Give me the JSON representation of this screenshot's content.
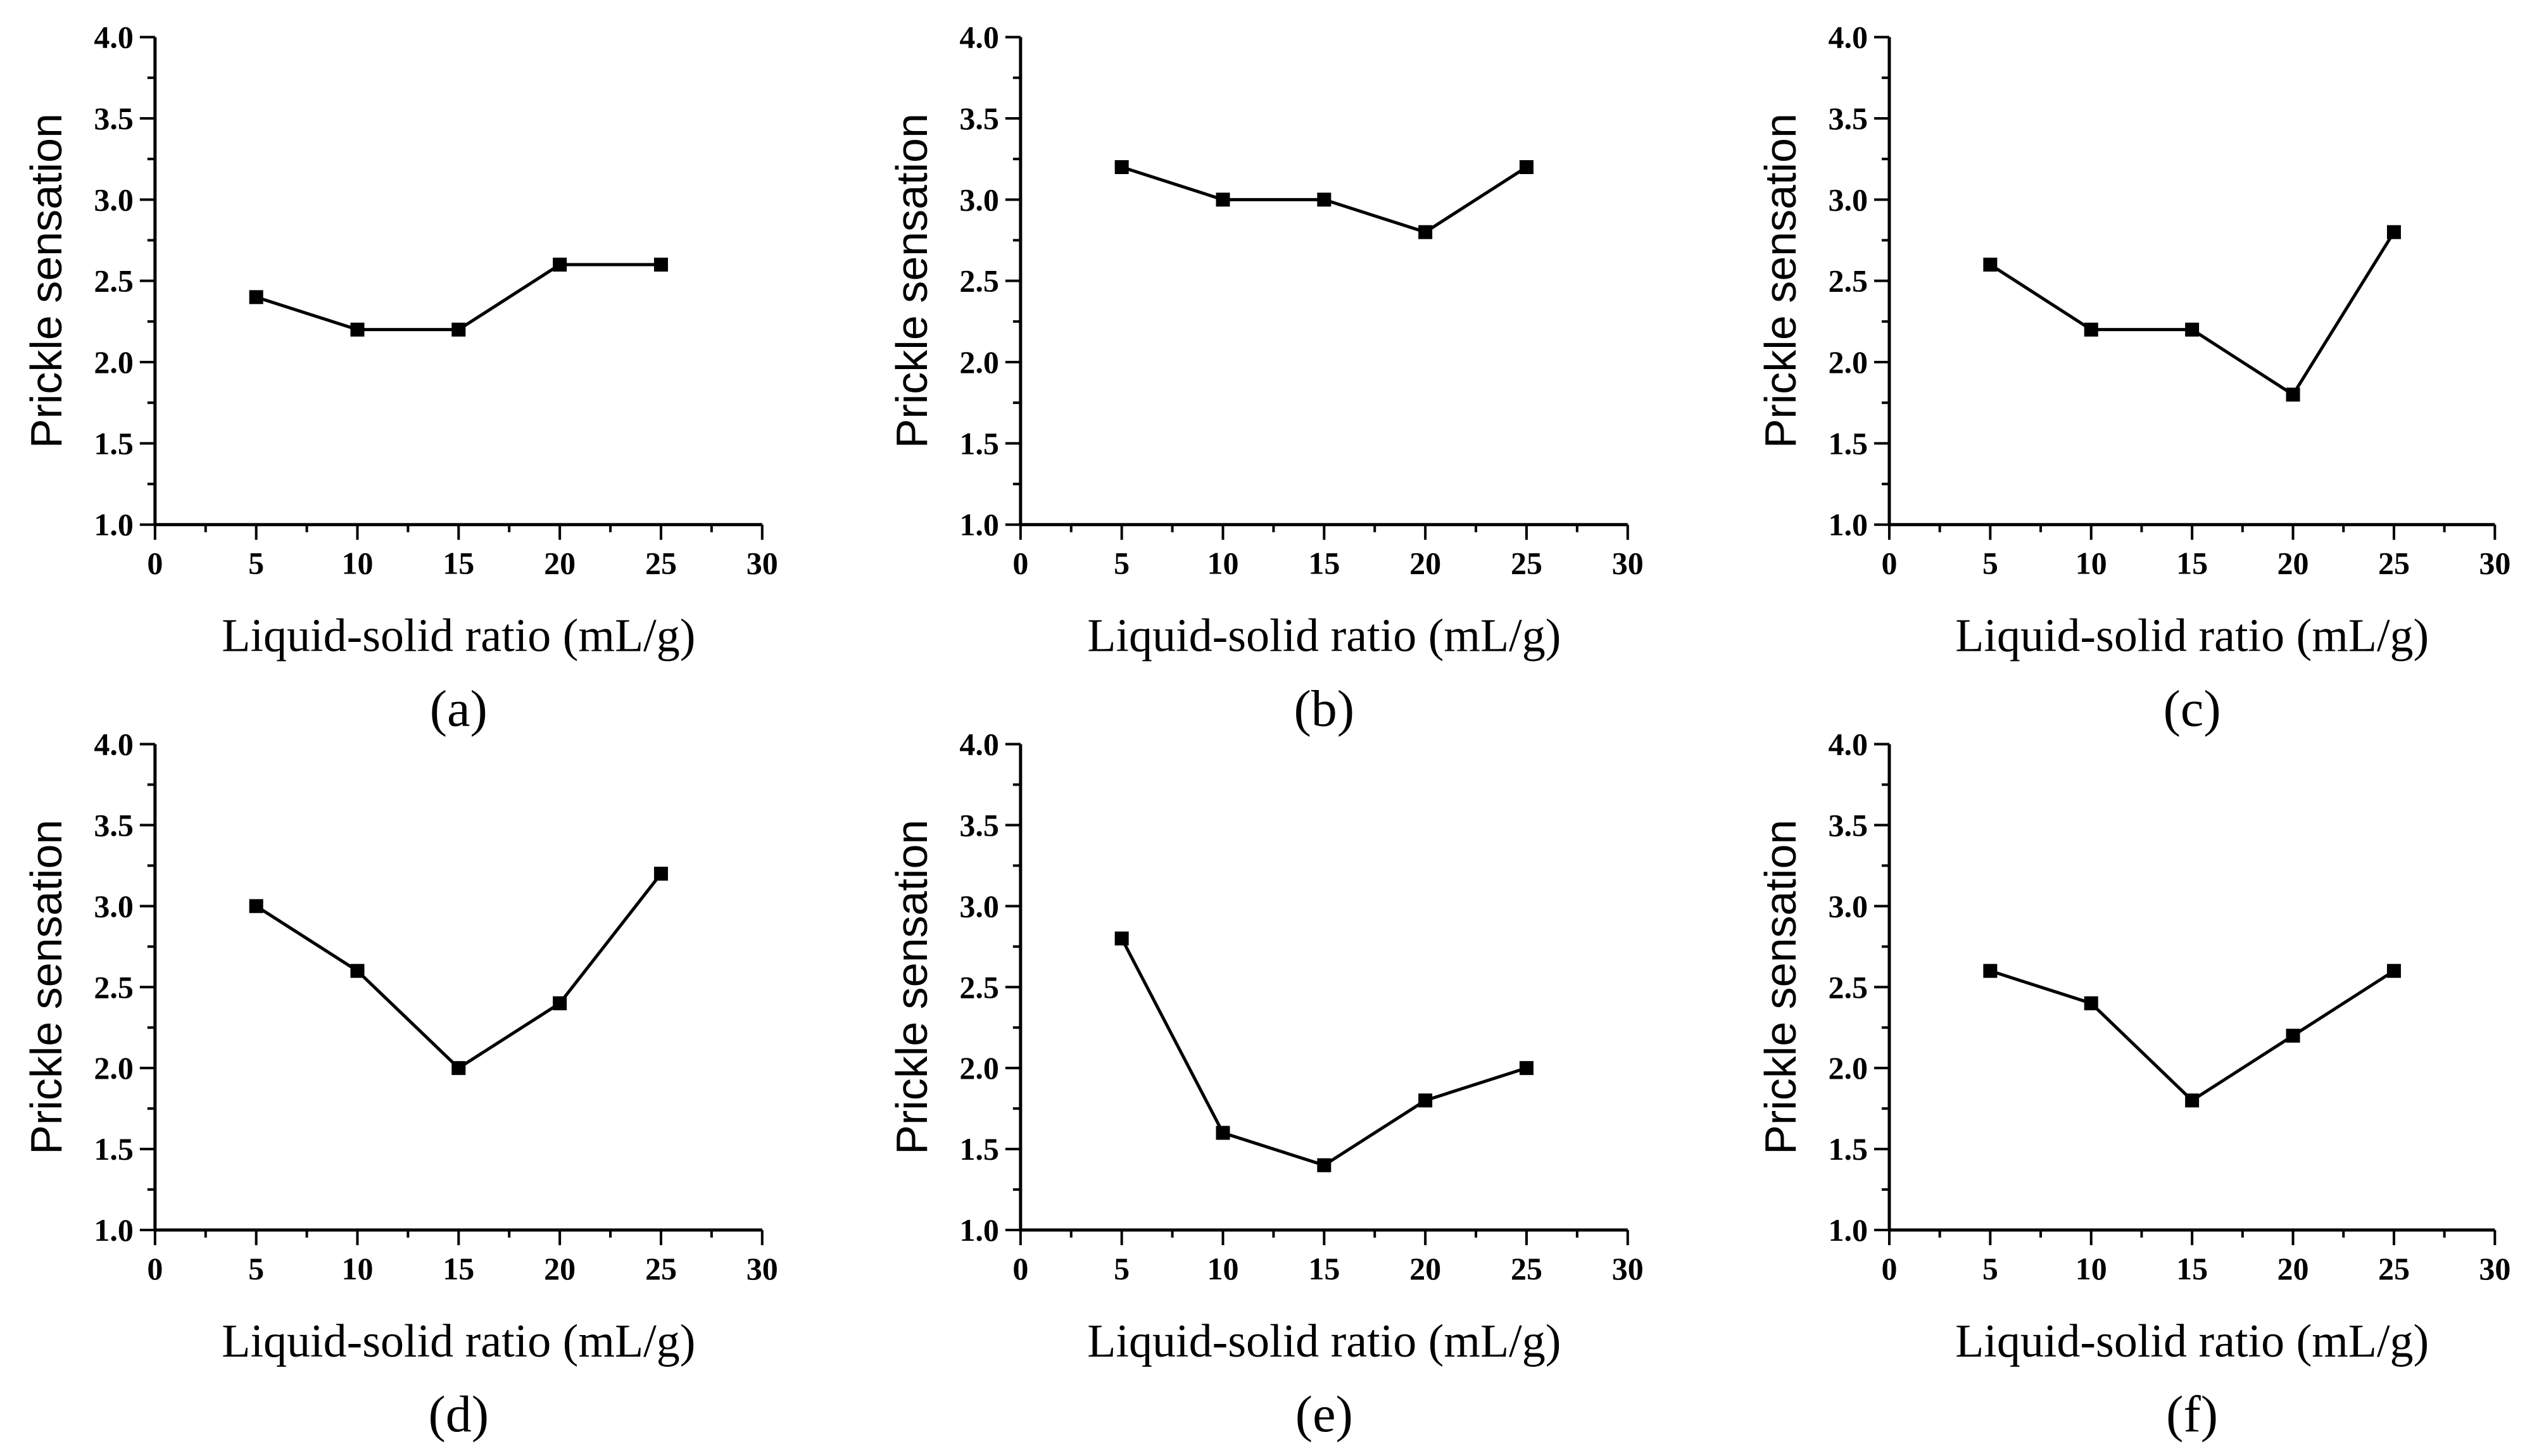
{
  "chart_data": [
    {
      "panel_label": "(a)",
      "type": "line",
      "xlabel": "Liquid-solid ratio (mL/g)",
      "ylabel": "Prickle sensation",
      "xlim": [
        0,
        30
      ],
      "ylim": [
        1.0,
        4.0
      ],
      "xticks": [
        "0",
        "5",
        "10",
        "15",
        "20",
        "25",
        "30"
      ],
      "yticks": [
        "1.0",
        "1.5",
        "2.0",
        "2.5",
        "3.0",
        "3.5",
        "4.0"
      ],
      "x": [
        5,
        10,
        15,
        20,
        25
      ],
      "values": [
        2.4,
        2.2,
        2.2,
        2.6,
        2.6
      ]
    },
    {
      "panel_label": "(b)",
      "type": "line",
      "xlabel": "Liquid-solid ratio (mL/g)",
      "ylabel": "Prickle sensation",
      "xlim": [
        0,
        30
      ],
      "ylim": [
        1.0,
        4.0
      ],
      "xticks": [
        "0",
        "5",
        "10",
        "15",
        "20",
        "25",
        "30"
      ],
      "yticks": [
        "1.0",
        "1.5",
        "2.0",
        "2.5",
        "3.0",
        "3.5",
        "4.0"
      ],
      "x": [
        5,
        10,
        15,
        20,
        25
      ],
      "values": [
        3.2,
        3.0,
        3.0,
        2.8,
        3.2
      ]
    },
    {
      "panel_label": "(c)",
      "type": "line",
      "xlabel": "Liquid-solid ratio (mL/g)",
      "ylabel": "Prickle sensation",
      "xlim": [
        0,
        30
      ],
      "ylim": [
        1.0,
        4.0
      ],
      "xticks": [
        "0",
        "5",
        "10",
        "15",
        "20",
        "25",
        "30"
      ],
      "yticks": [
        "1.0",
        "1.5",
        "2.0",
        "2.5",
        "3.0",
        "3.5",
        "4.0"
      ],
      "x": [
        5,
        10,
        15,
        20,
        25
      ],
      "values": [
        2.6,
        2.2,
        2.2,
        1.8,
        2.8
      ]
    },
    {
      "panel_label": "(d)",
      "type": "line",
      "xlabel": "Liquid-solid ratio (mL/g)",
      "ylabel": "Prickle sensation",
      "xlim": [
        0,
        30
      ],
      "ylim": [
        1.0,
        4.0
      ],
      "xticks": [
        "0",
        "5",
        "10",
        "15",
        "20",
        "25",
        "30"
      ],
      "yticks": [
        "1.0",
        "1.5",
        "2.0",
        "2.5",
        "3.0",
        "3.5",
        "4.0"
      ],
      "x": [
        5,
        10,
        15,
        20,
        25
      ],
      "values": [
        3.0,
        2.6,
        2.0,
        2.4,
        3.2
      ]
    },
    {
      "panel_label": "(e)",
      "type": "line",
      "xlabel": "Liquid-solid ratio (mL/g)",
      "ylabel": "Prickle sensation",
      "xlim": [
        0,
        30
      ],
      "ylim": [
        1.0,
        4.0
      ],
      "xticks": [
        "0",
        "5",
        "10",
        "15",
        "20",
        "25",
        "30"
      ],
      "yticks": [
        "1.0",
        "1.5",
        "2.0",
        "2.5",
        "3.0",
        "3.5",
        "4.0"
      ],
      "x": [
        5,
        10,
        15,
        20,
        25
      ],
      "values": [
        2.8,
        1.6,
        1.4,
        1.8,
        2.0
      ]
    },
    {
      "panel_label": "(f)",
      "type": "line",
      "xlabel": "Liquid-solid ratio (mL/g)",
      "ylabel": "Prickle sensation",
      "xlim": [
        0,
        30
      ],
      "ylim": [
        1.0,
        4.0
      ],
      "xticks": [
        "0",
        "5",
        "10",
        "15",
        "20",
        "25",
        "30"
      ],
      "yticks": [
        "1.0",
        "1.5",
        "2.0",
        "2.5",
        "3.0",
        "3.5",
        "4.0"
      ],
      "x": [
        5,
        10,
        15,
        20,
        25
      ],
      "values": [
        2.6,
        2.4,
        1.8,
        2.2,
        2.6
      ]
    }
  ]
}
